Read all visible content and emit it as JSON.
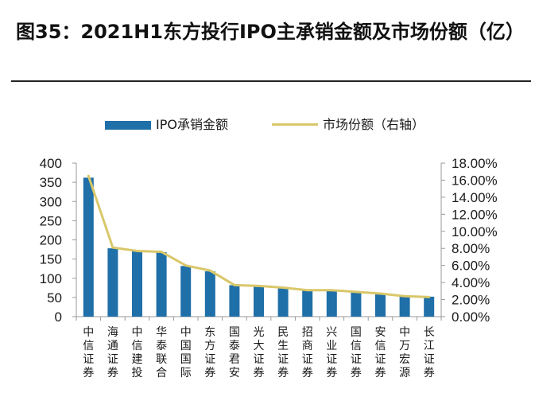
{
  "figure": {
    "title": "图35：2021H1东方投行IPO主承销金额及市场份额（亿）"
  },
  "colors": {
    "bar": "#1f6fa8",
    "line": "#d9c76a",
    "axis": "#9a9a9a"
  },
  "chart_data": {
    "type": "bar",
    "categories": [
      "中信证券",
      "海通证券",
      "中信建投",
      "华泰联合",
      "中国国际",
      "东方证券",
      "国泰君安",
      "光大证券",
      "民生证券",
      "招商证券",
      "兴业证券",
      "国信证券",
      "安信证券",
      "中万宏源",
      "长江证券"
    ],
    "series": [
      {
        "name": "IPO承销金额",
        "type": "bar",
        "axis": "left",
        "values": [
          362,
          178,
          170,
          168,
          132,
          118,
          82,
          78,
          74,
          68,
          68,
          64,
          60,
          54,
          52
        ]
      },
      {
        "name": "市场份额（右轴）",
        "type": "line",
        "axis": "right",
        "values": [
          16.5,
          8.1,
          7.7,
          7.6,
          6.0,
          5.4,
          3.7,
          3.6,
          3.4,
          3.1,
          3.1,
          2.9,
          2.7,
          2.4,
          2.3
        ]
      }
    ],
    "y_left": {
      "min": 0,
      "max": 400,
      "step": 50,
      "ticks": [
        "0",
        "50",
        "100",
        "150",
        "200",
        "250",
        "300",
        "350",
        "400"
      ]
    },
    "y_right": {
      "min": 0,
      "max": 18,
      "step": 2,
      "ticks": [
        "0.00%",
        "2.00%",
        "4.00%",
        "6.00%",
        "8.00%",
        "10.00%",
        "12.00%",
        "14.00%",
        "16.00%",
        "18.00%"
      ]
    },
    "legend_position": "top",
    "grid": false
  }
}
